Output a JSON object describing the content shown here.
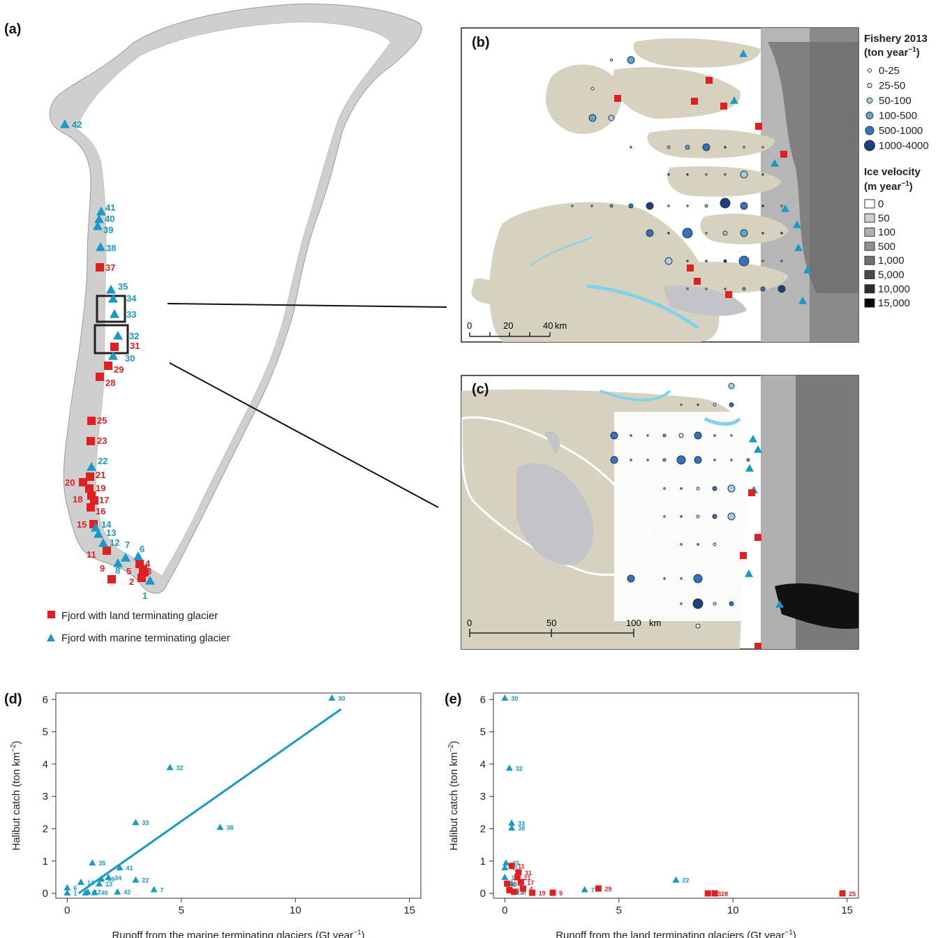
{
  "panels": {
    "a": "(a)",
    "b": "(b)",
    "c": "(c)",
    "d": "(d)",
    "e": "(e)"
  },
  "map_legend": {
    "land": "Fjord with land terminating glacier",
    "marine": "Fjord with marine terminating glacier"
  },
  "colors": {
    "land": "#e02020",
    "marine": "#1899c8",
    "land_area": "#d6d2bf",
    "ice": "#c9c9c9",
    "sea": "#ffffff"
  },
  "sites_land": [
    "2",
    "3",
    "4",
    "5",
    "9",
    "11",
    "15",
    "16",
    "17",
    "18",
    "19",
    "20",
    "21",
    "23",
    "25",
    "28",
    "29",
    "31",
    "37"
  ],
  "sites_marine": [
    "1",
    "6",
    "7",
    "8",
    "12",
    "13",
    "14",
    "22",
    "30",
    "32",
    "33",
    "34",
    "35",
    "38",
    "39",
    "40",
    "41",
    "42"
  ],
  "fishery_legend": {
    "title_line1": "Fishery 2013",
    "title_line2": "(ton year",
    "title_sup": "−1",
    "title_end": ")",
    "classes": [
      "0-25",
      "25-50",
      "50-100",
      "100-500",
      "500-1000",
      "1000-4000"
    ],
    "colors": [
      "#ffffff",
      "#d8eef7",
      "#9fd0e8",
      "#5aa8d8",
      "#2f74c0",
      "#1a3f80"
    ]
  },
  "velocity_legend": {
    "title_line1": "Ice velocity",
    "title_line2": "(m year",
    "title_sup": "−1",
    "title_end": ")",
    "classes": [
      "0",
      "50",
      "100",
      "500",
      "1,000",
      "5,000",
      "10,000",
      "15,000"
    ],
    "colors": [
      "#ffffff",
      "#d0d0d0",
      "#b0b0b0",
      "#909090",
      "#707070",
      "#4a4a4a",
      "#2c2c2c",
      "#000000"
    ]
  },
  "scalebar_b": {
    "ticks": [
      "0",
      "20",
      "40"
    ],
    "unit": "km"
  },
  "scalebar_c": {
    "ticks": [
      "0",
      "50",
      "100"
    ],
    "unit": "km"
  },
  "chart_data": [
    {
      "id": "d",
      "type": "scatter",
      "xlabel": "Runoff from the marine terminating glaciers  (Gt year",
      "xlabel_sup": "−1",
      "xlabel_end": ")",
      "ylabel": "Halibut catch  (ton km",
      "ylabel_sup": "−2",
      "ylabel_end": ")",
      "xlim": [
        -0.5,
        15.5
      ],
      "ylim": [
        -0.15,
        6.2
      ],
      "xticks": [
        0,
        5,
        10,
        15
      ],
      "yticks": [
        0,
        1,
        2,
        3,
        4,
        5,
        6
      ],
      "series": [
        {
          "marker": "triangle",
          "color": "#1899c8",
          "points": [
            {
              "label": "30",
              "x": 11.6,
              "y": 6.05
            },
            {
              "label": "32",
              "x": 4.5,
              "y": 3.9
            },
            {
              "label": "33",
              "x": 3.0,
              "y": 2.2
            },
            {
              "label": "38",
              "x": 6.7,
              "y": 2.05
            },
            {
              "label": "35",
              "x": 1.1,
              "y": 0.95
            },
            {
              "label": "41",
              "x": 2.3,
              "y": 0.8
            },
            {
              "label": "34",
              "x": 1.8,
              "y": 0.5
            },
            {
              "label": "39",
              "x": 1.5,
              "y": 0.45
            },
            {
              "label": "22",
              "x": 3.0,
              "y": 0.42
            },
            {
              "label": "14",
              "x": 0.6,
              "y": 0.35
            },
            {
              "label": "6",
              "x": 0.0,
              "y": 0.18
            },
            {
              "label": "13",
              "x": 1.4,
              "y": 0.3
            },
            {
              "label": "7",
              "x": 3.8,
              "y": 0.12
            },
            {
              "label": "42",
              "x": 2.2,
              "y": 0.05
            },
            {
              "label": "12",
              "x": 0.9,
              "y": 0.05
            },
            {
              "label": "40",
              "x": 1.2,
              "y": 0.03
            },
            {
              "label": "8",
              "x": 0.8,
              "y": 0.02
            },
            {
              "label": "1",
              "x": 0.0,
              "y": 0.02
            }
          ]
        }
      ],
      "trendline": {
        "x": [
          0.5,
          12.0
        ],
        "y": [
          0.0,
          5.7
        ]
      }
    },
    {
      "id": "e",
      "type": "scatter",
      "xlabel": "Runoff from the land terminating glaciers  (Gt year",
      "xlabel_sup": "−1",
      "xlabel_end": ")",
      "ylabel": "Halibut catch  (ton km",
      "ylabel_sup": "−2",
      "ylabel_end": ")",
      "xlim": [
        -0.5,
        15.5
      ],
      "ylim": [
        -0.15,
        6.2
      ],
      "xticks": [
        0,
        5,
        10,
        15
      ],
      "yticks": [
        0,
        1,
        2,
        3,
        4,
        5,
        6
      ],
      "series": [
        {
          "marker": "triangle",
          "color": "#1899c8",
          "points": [
            {
              "label": "30",
              "x": 0.0,
              "y": 6.05
            },
            {
              "label": "32",
              "x": 0.2,
              "y": 3.88
            },
            {
              "label": "33",
              "x": 0.3,
              "y": 2.18
            },
            {
              "label": "38",
              "x": 0.3,
              "y": 2.03
            },
            {
              "label": "35",
              "x": 0.05,
              "y": 0.95
            },
            {
              "label": "22",
              "x": 7.5,
              "y": 0.42
            },
            {
              "label": "7",
              "x": 3.5,
              "y": 0.12
            },
            {
              "label": "41",
              "x": 0.0,
              "y": 0.8
            },
            {
              "label": "14",
              "x": 0.0,
              "y": 0.5
            },
            {
              "label": "6",
              "x": 0.3,
              "y": 0.3
            },
            {
              "label": "8",
              "x": 0.5,
              "y": 0.05
            }
          ]
        },
        {
          "marker": "square",
          "color": "#e02020",
          "points": [
            {
              "label": "11",
              "x": 0.3,
              "y": 0.85
            },
            {
              "label": "31",
              "x": 0.6,
              "y": 0.65
            },
            {
              "label": "21",
              "x": 0.55,
              "y": 0.5
            },
            {
              "label": "19",
              "x": 1.2,
              "y": 0.02
            },
            {
              "label": "9",
              "x": 2.1,
              "y": 0.02
            },
            {
              "label": "29",
              "x": 4.1,
              "y": 0.15
            },
            {
              "label": "23",
              "x": 8.9,
              "y": 0.0
            },
            {
              "label": "28",
              "x": 9.2,
              "y": 0.0
            },
            {
              "label": "25",
              "x": 14.8,
              "y": 0.0
            },
            {
              "label": "5",
              "x": 0.1,
              "y": 0.3
            },
            {
              "label": "17",
              "x": 0.7,
              "y": 0.35
            },
            {
              "label": "3",
              "x": 0.2,
              "y": 0.1
            },
            {
              "label": "2",
              "x": 0.4,
              "y": 0.05
            },
            {
              "label": "4",
              "x": 0.8,
              "y": 0.15
            }
          ]
        }
      ]
    }
  ]
}
